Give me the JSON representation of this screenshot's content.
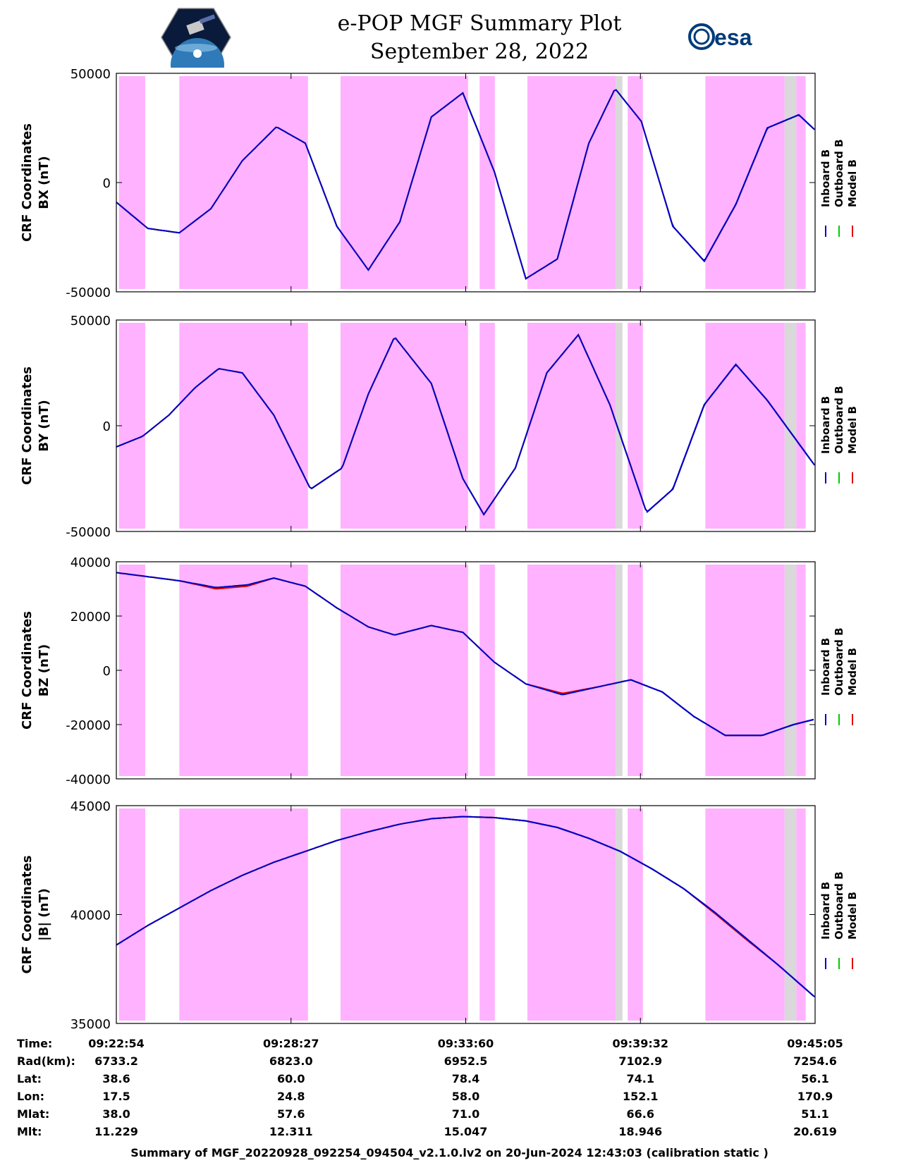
{
  "title": {
    "line1": "e-POP MGF Summary Plot",
    "line2": "September 28, 2022"
  },
  "logos": {
    "left": "cassiope-mission-logo",
    "right": "esa"
  },
  "colors": {
    "inboard": "#0000cc",
    "outboard": "#00cc00",
    "model": "#dd0000",
    "shade_magenta": "#ffb2ff",
    "shade_gray": "#d9d9d9"
  },
  "legend": {
    "inboard": "Inboard B",
    "outboard": "Outboard B",
    "model": "Model B"
  },
  "shading": {
    "time_range_s": [
      0,
      1331
    ],
    "magenta": [
      [
        5,
        55
      ],
      [
        120,
        365
      ],
      [
        427,
        670
      ],
      [
        692,
        721
      ],
      [
        783,
        951
      ],
      [
        974,
        1003
      ],
      [
        1122,
        1273
      ],
      [
        1295,
        1313
      ]
    ],
    "gray": [
      [
        951,
        964
      ],
      [
        1273,
        1295
      ]
    ]
  },
  "chart_data": [
    {
      "type": "line",
      "ylabel_line1": "CRF Coordinates",
      "ylabel_line2": "BX (nT)",
      "ylim": [
        -50000,
        50000
      ],
      "yticks": [
        -50000,
        0,
        50000
      ],
      "blue_from_s": 1050,
      "series": [
        {
          "name": "Inboard B",
          "x": [
            0,
            60,
            120,
            180,
            240,
            305,
            360,
            420,
            480,
            540,
            600,
            660,
            720,
            780,
            840,
            900,
            950,
            1000,
            1060,
            1120,
            1180,
            1240,
            1300,
            1331
          ],
          "y": [
            -9000,
            -21000,
            -23000,
            -12000,
            10000,
            25500,
            18000,
            -20000,
            -40000,
            -18000,
            30000,
            41000,
            5000,
            -44000,
            -35000,
            18000,
            43000,
            28000,
            -20000,
            -36000,
            -10000,
            25000,
            31000,
            24000
          ]
        },
        {
          "name": "Outboard B",
          "x": [
            0,
            60,
            120,
            180,
            240,
            305,
            360,
            420,
            480,
            540,
            600,
            660,
            720,
            780,
            840,
            900,
            950,
            1000,
            1060,
            1120,
            1180,
            1240,
            1300,
            1331
          ],
          "y": [
            -9000,
            -21000,
            -23000,
            -12000,
            10000,
            25500,
            18000,
            -20000,
            -40000,
            -18000,
            30000,
            41000,
            5000,
            -44000,
            -35000,
            18000,
            43000,
            28000,
            -20000,
            -36000,
            -10000,
            25000,
            31000,
            24000
          ]
        },
        {
          "name": "Model B",
          "x": [
            0,
            60,
            120,
            180,
            240,
            305,
            360,
            420,
            480,
            540,
            600,
            660,
            720,
            780,
            840,
            900,
            950,
            1000,
            1060,
            1120,
            1180,
            1240,
            1300,
            1331
          ],
          "y": [
            -9000,
            -21000,
            -23000,
            -12000,
            10000,
            25500,
            18000,
            -20000,
            -40000,
            -18000,
            30000,
            41000,
            5000,
            -44000,
            -35000,
            18000,
            43000,
            28000,
            -20000,
            -36000,
            -10000,
            25000,
            31000,
            24000
          ]
        }
      ]
    },
    {
      "type": "line",
      "ylabel_line1": "CRF Coordinates",
      "ylabel_line2": "BY (nT)",
      "ylim": [
        -50000,
        50000
      ],
      "yticks": [
        -50000,
        0,
        50000
      ],
      "blue_from_s": 1010,
      "series": [
        {
          "name": "Inboard B",
          "x": [
            0,
            50,
            100,
            150,
            195,
            240,
            300,
            370,
            430,
            480,
            530,
            600,
            660,
            700,
            760,
            820,
            880,
            940,
            1010,
            1060,
            1120,
            1180,
            1240,
            1331
          ],
          "y": [
            -10000,
            -5000,
            5000,
            18000,
            27000,
            25000,
            5000,
            -30000,
            -20000,
            15000,
            42000,
            20000,
            -25000,
            -42000,
            -20000,
            25000,
            43000,
            10000,
            -41000,
            -30000,
            10000,
            29000,
            12000,
            -19000
          ]
        },
        {
          "name": "Outboard B",
          "x": [
            0,
            50,
            100,
            150,
            195,
            240,
            300,
            370,
            430,
            480,
            530,
            600,
            660,
            700,
            760,
            820,
            880,
            940,
            1010,
            1060,
            1120,
            1180,
            1240,
            1331
          ],
          "y": [
            -10000,
            -5000,
            5000,
            18000,
            27000,
            25000,
            5000,
            -30000,
            -20000,
            15000,
            42000,
            20000,
            -25000,
            -42000,
            -20000,
            25000,
            43000,
            10000,
            -41000,
            -30000,
            10000,
            29000,
            12000,
            -19000
          ]
        },
        {
          "name": "Model B",
          "x": [
            0,
            50,
            100,
            150,
            195,
            240,
            300,
            370,
            430,
            480,
            530,
            600,
            660,
            700,
            760,
            820,
            880,
            940,
            1010,
            1060,
            1120,
            1180,
            1240,
            1331
          ],
          "y": [
            -10000,
            -5000,
            5000,
            18000,
            27000,
            25000,
            5000,
            -30000,
            -20000,
            15000,
            42000,
            20000,
            -25000,
            -42000,
            -20000,
            25000,
            43000,
            10000,
            -41000,
            -30000,
            10000,
            29000,
            12000,
            -19000
          ]
        }
      ]
    },
    {
      "type": "line",
      "ylabel_line1": "CRF Coordinates",
      "ylabel_line2": "BZ (nT)",
      "ylim": [
        -40000,
        40000
      ],
      "yticks": [
        -40000,
        -20000,
        0,
        20000,
        40000
      ],
      "blue_from_s": 980,
      "series": [
        {
          "name": "Inboard B",
          "x": [
            0,
            60,
            120,
            190,
            250,
            300,
            360,
            420,
            480,
            530,
            600,
            660,
            720,
            780,
            850,
            920,
            980,
            1040,
            1100,
            1160,
            1230,
            1290,
            1331
          ],
          "y": [
            36000,
            34500,
            33000,
            30500,
            31500,
            34000,
            31000,
            23000,
            16000,
            13000,
            16500,
            14000,
            3000,
            -5000,
            -9000,
            -6000,
            -3500,
            -8000,
            -17000,
            -24000,
            -24000,
            -20000,
            -18000
          ]
        },
        {
          "name": "Outboard B",
          "x": [
            0,
            60,
            120,
            190,
            250,
            300,
            360,
            420,
            480,
            530,
            600,
            660,
            720,
            780,
            850,
            920,
            980,
            1040,
            1100,
            1160,
            1230,
            1290,
            1331
          ],
          "y": [
            36000,
            34500,
            33000,
            30500,
            31500,
            34000,
            31000,
            23000,
            16000,
            13000,
            16500,
            14000,
            3000,
            -5000,
            -9000,
            -6000,
            -3500,
            -8000,
            -17000,
            -24000,
            -24000,
            -20000,
            -18000
          ]
        },
        {
          "name": "Model B",
          "x": [
            0,
            60,
            120,
            190,
            250,
            300,
            360,
            420,
            480,
            530,
            600,
            660,
            720,
            780,
            850,
            920,
            980,
            1040,
            1100,
            1160,
            1230,
            1290,
            1331
          ],
          "y": [
            36000,
            34500,
            33000,
            30000,
            31000,
            34000,
            31000,
            23000,
            16000,
            13000,
            16500,
            14000,
            3000,
            -5000,
            -8500,
            -6000,
            -3500,
            -8000,
            -17000,
            -24000,
            -24000,
            -20000,
            -18000
          ]
        }
      ]
    },
    {
      "type": "line",
      "ylabel_line1": "CRF Coordinates",
      "ylabel_line2": "|B| (nT)",
      "ylim": [
        35000,
        45000
      ],
      "yticks": [
        35000,
        40000,
        45000
      ],
      "blue_from_s": 730,
      "series": [
        {
          "name": "Inboard B",
          "x": [
            0,
            60,
            120,
            180,
            240,
            300,
            360,
            420,
            480,
            540,
            600,
            660,
            720,
            780,
            840,
            900,
            960,
            1020,
            1080,
            1140,
            1200,
            1260,
            1331
          ],
          "y": [
            38600,
            39500,
            40300,
            41100,
            41800,
            42400,
            42900,
            43400,
            43800,
            44150,
            44400,
            44500,
            44450,
            44300,
            44000,
            43500,
            42900,
            42100,
            41200,
            40100,
            38900,
            37700,
            36200
          ]
        },
        {
          "name": "Outboard B",
          "x": [
            0,
            60,
            120,
            180,
            240,
            300,
            360,
            420,
            480,
            540,
            600,
            660,
            720,
            780,
            840,
            900,
            960,
            1020,
            1080,
            1140,
            1200,
            1260,
            1331
          ],
          "y": [
            38600,
            39500,
            40300,
            41100,
            41800,
            42400,
            42900,
            43400,
            43800,
            44150,
            44400,
            44500,
            44450,
            44300,
            44000,
            43500,
            42900,
            42100,
            41200,
            40100,
            38900,
            37700,
            36200
          ]
        },
        {
          "name": "Model B",
          "x": [
            0,
            60,
            120,
            180,
            240,
            300,
            360,
            420,
            480,
            540,
            600,
            660,
            720,
            780,
            840,
            900,
            960,
            1020,
            1080,
            1140,
            1200,
            1260,
            1331
          ],
          "y": [
            38600,
            39500,
            40300,
            41100,
            41800,
            42400,
            42900,
            43400,
            43800,
            44150,
            44400,
            44500,
            44450,
            44300,
            44000,
            43500,
            42900,
            42100,
            41200,
            40050,
            38850,
            37700,
            36200
          ]
        }
      ]
    }
  ],
  "ephemeris": {
    "row_labels": [
      "Time:",
      "Rad(km):",
      "Lat:",
      "Lon:",
      "Mlat:",
      "Mlt:"
    ],
    "columns": [
      [
        "09:22:54",
        "6733.2",
        "38.6",
        "17.5",
        "38.0",
        "11.229"
      ],
      [
        "09:28:27",
        "6823.0",
        "60.0",
        "24.8",
        "57.6",
        "12.311"
      ],
      [
        "09:33:60",
        "6952.5",
        "78.4",
        "58.0",
        "71.0",
        "15.047"
      ],
      [
        "09:39:32",
        "7102.9",
        "74.1",
        "152.1",
        "66.6",
        "18.946"
      ],
      [
        "09:45:05",
        "7254.6",
        "56.1",
        "170.9",
        "51.1",
        "20.619"
      ]
    ]
  },
  "footer": "Summary of MGF_20220928_092254_094504_v2.1.0.lv2 on 20-Jun-2024 12:43:03 (calibration static )"
}
